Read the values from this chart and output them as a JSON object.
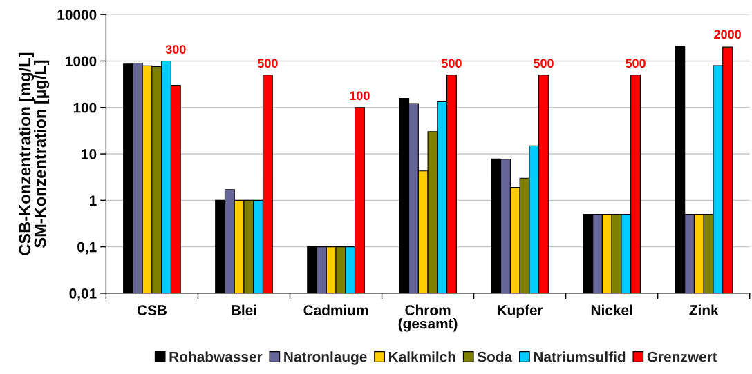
{
  "chart_data": {
    "type": "bar",
    "categories": [
      "CSB",
      "Blei",
      "Cadmium",
      "Chrom\n(gesamt)",
      "Kupfer",
      "Nickel",
      "Zink"
    ],
    "ylabel": "CSB-Konzentration [mg/L]\nSM-Konzentration [µg/L]",
    "log": "y",
    "ylim": [
      0.01,
      10000
    ],
    "yticks": [
      {
        "value": 0.01,
        "label": "0,01"
      },
      {
        "value": 0.1,
        "label": "0,1"
      },
      1,
      10,
      100,
      1000,
      10000
    ],
    "grid": "y",
    "legend": "bottom",
    "series": [
      {
        "name": "Rohabwasser",
        "color": "#000000",
        "values": [
          860,
          1,
          0.1,
          157,
          7.8,
          0.5,
          2100
        ]
      },
      {
        "name": "Natronlauge",
        "color": "#666699",
        "values": [
          900,
          1.7,
          0.1,
          121,
          7.7,
          0.5,
          0.5
        ]
      },
      {
        "name": "Kalkmilch",
        "color": "#ffcc00",
        "values": [
          790,
          1,
          0.1,
          4.3,
          1.9,
          0.5,
          0.5
        ]
      },
      {
        "name": "Soda",
        "color": "#808000",
        "values": [
          760,
          1,
          0.1,
          30,
          3,
          0.5,
          0.5
        ]
      },
      {
        "name": "Natriumsulfid",
        "color": "#00ccff",
        "values": [
          1000,
          1,
          0.1,
          133,
          15,
          0.5,
          800
        ]
      },
      {
        "name": "Grenzwert",
        "color": "#ff0000",
        "values": [
          300,
          500,
          100,
          500,
          500,
          500,
          2000
        ],
        "value_labels": [
          "300",
          "500",
          "100",
          "500",
          "500",
          "500",
          "2000"
        ]
      }
    ]
  }
}
